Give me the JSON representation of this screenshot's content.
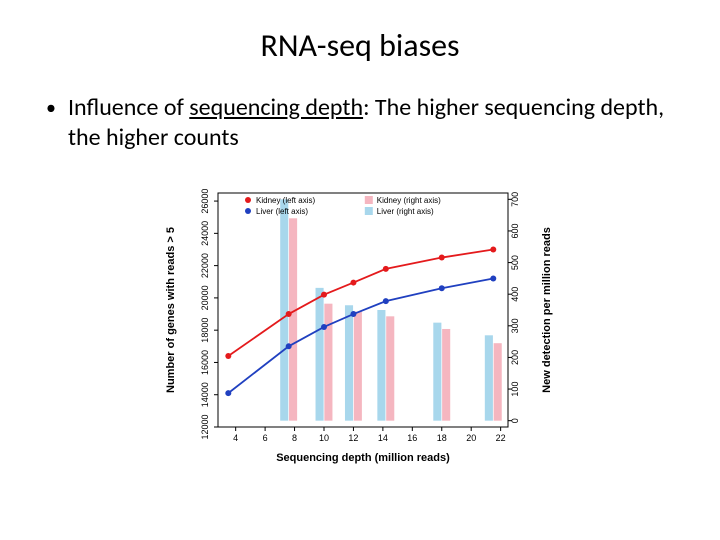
{
  "title": "RNA-seq biases",
  "bullet": {
    "prefix": "Influence of ",
    "underlined": "sequencing depth",
    "suffix": ": The higher sequencing depth, the higher counts"
  },
  "chart": {
    "type": "dual-axis-line-bar",
    "background_color": "#ffffff",
    "plot_border_color": "#000000",
    "x": {
      "title": "Sequencing depth (million reads)",
      "lim": [
        2.8,
        22.5
      ],
      "ticks": [
        4,
        6,
        8,
        10,
        12,
        14,
        16,
        18,
        20,
        22
      ],
      "label_fontsize": 9
    },
    "y_left": {
      "title": "Number of genes with reads > 5",
      "lim": [
        12000,
        26500
      ],
      "ticks": [
        12000,
        14000,
        16000,
        18000,
        20000,
        22000,
        24000,
        26000
      ]
    },
    "y_right": {
      "title": "New detection per million reads",
      "lim": [
        -20,
        720
      ],
      "ticks": [
        0,
        100,
        200,
        300,
        400,
        500,
        600,
        700
      ]
    },
    "lines": [
      {
        "name": "Kidney (left axis)",
        "color": "#e41a1c",
        "marker": "circle",
        "marker_size": 3,
        "line_width": 1.8,
        "xy": [
          [
            3.5,
            16400
          ],
          [
            7.6,
            19000
          ],
          [
            10,
            20200
          ],
          [
            12,
            20950
          ],
          [
            14.2,
            21800
          ],
          [
            18,
            22500
          ],
          [
            21.5,
            23000
          ]
        ]
      },
      {
        "name": "Liver (left axis)",
        "color": "#2040c0",
        "marker": "circle",
        "marker_size": 3,
        "line_width": 1.8,
        "xy": [
          [
            3.5,
            14100
          ],
          [
            7.6,
            17000
          ],
          [
            10,
            18200
          ],
          [
            12,
            19000
          ],
          [
            14.2,
            19800
          ],
          [
            18,
            20600
          ],
          [
            21.5,
            21200
          ]
        ]
      }
    ],
    "bars": [
      {
        "name": "Kidney (right axis)",
        "color": "#f5b6c0",
        "width": 0.55,
        "xy": [
          [
            7.9,
            640
          ],
          [
            10.3,
            370
          ],
          [
            12.3,
            345
          ],
          [
            14.5,
            330
          ],
          [
            18.3,
            290
          ],
          [
            21.8,
            245
          ]
        ]
      },
      {
        "name": "Liver (right axis)",
        "color": "#a8d7ec",
        "width": 0.55,
        "xy": [
          [
            7.3,
            700
          ],
          [
            9.7,
            420
          ],
          [
            11.7,
            365
          ],
          [
            13.9,
            350
          ],
          [
            17.7,
            310
          ],
          [
            21.2,
            270
          ]
        ]
      }
    ],
    "legend": {
      "pos": "top-inside",
      "items": [
        {
          "label": "Kidney (left axis)",
          "swatch": "#e41a1c",
          "shape": "dot"
        },
        {
          "label": "Liver (left axis)",
          "swatch": "#2040c0",
          "shape": "dot"
        },
        {
          "label": "Kidney (right axis)",
          "swatch": "#f5b6c0",
          "shape": "square"
        },
        {
          "label": "Liver (right axis)",
          "swatch": "#a8d7ec",
          "shape": "square"
        }
      ]
    }
  }
}
